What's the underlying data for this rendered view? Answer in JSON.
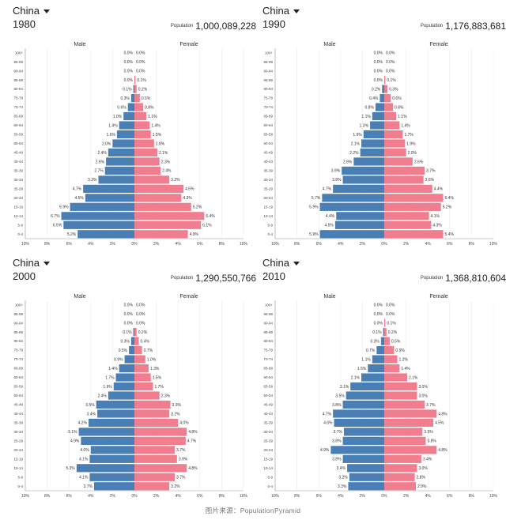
{
  "age_groups": [
    "0-4",
    "5-9",
    "10-14",
    "15-19",
    "20-24",
    "25-29",
    "30-34",
    "35-39",
    "40-44",
    "45-49",
    "50-54",
    "55-59",
    "60-64",
    "65-69",
    "70-74",
    "75-79",
    "80-84",
    "85-89",
    "90-94",
    "95-99",
    "100+"
  ],
  "x_ticks": [
    "10%",
    "8%",
    "6%",
    "4%",
    "2%",
    "0%",
    "2%",
    "4%",
    "6%",
    "8%",
    "10%"
  ],
  "colors": {
    "male": "#4a7fb5",
    "female": "#f07e8e"
  },
  "footer": "图片来源：PopulationPyramid",
  "chart_data": [
    {
      "type": "bar",
      "country": "China",
      "year": "1980",
      "population_label": "Population",
      "population": "1,000,089,228",
      "series_labels": {
        "male": "Male",
        "female": "Female"
      },
      "xlim": [
        -10,
        10
      ],
      "male": [
        5.2,
        6.5,
        6.7,
        5.9,
        4.5,
        4.7,
        3.3,
        2.7,
        2.6,
        2.4,
        2.0,
        1.6,
        1.4,
        1.0,
        0.6,
        0.3,
        0.1,
        0.0,
        0.0,
        0.0,
        0.0
      ],
      "female": [
        4.9,
        6.1,
        6.4,
        5.2,
        4.3,
        4.5,
        3.2,
        2.4,
        2.3,
        2.1,
        1.8,
        1.5,
        1.4,
        1.1,
        0.8,
        0.5,
        0.2,
        0.1,
        0.0,
        0.0,
        0.0
      ],
      "male_labels": [
        "5.2%",
        "6.5%",
        "6.7%",
        "5.9%",
        "4.5%",
        "4.7%",
        "3.3%",
        "2.7%",
        "2.6%",
        "2.4%",
        "2.0%",
        "1.6%",
        "1.4%",
        "1.0%",
        "0.6%",
        "0.3%",
        "0.1%",
        "0.0%",
        "0.0%",
        "0.0%",
        "0.0%"
      ],
      "female_labels": [
        "4.9%",
        "6.1%",
        "6.4%",
        "5.2%",
        "4.3%",
        "4.5%",
        "3.2%",
        "2.4%",
        "2.3%",
        "2.1%",
        "1.8%",
        "1.5%",
        "1.4%",
        "1.1%",
        "0.8%",
        "0.5%",
        "0.2%",
        "0.1%",
        "0.0%",
        "0.0%",
        "0.0%"
      ]
    },
    {
      "type": "bar",
      "country": "China",
      "year": "1990",
      "population_label": "Population",
      "population": "1,176,883,681",
      "series_labels": {
        "male": "Male",
        "female": "Female"
      },
      "xlim": [
        -10,
        10
      ],
      "male": [
        5.9,
        4.5,
        4.4,
        5.9,
        5.7,
        4.7,
        3.8,
        3.9,
        2.8,
        2.2,
        2.1,
        1.9,
        1.3,
        1.1,
        0.8,
        0.4,
        0.2,
        0.0,
        0.0,
        0.0,
        0.0
      ],
      "female": [
        5.4,
        4.3,
        4.1,
        5.2,
        5.4,
        4.4,
        3.6,
        3.7,
        2.6,
        2.0,
        1.9,
        1.7,
        1.4,
        1.1,
        0.8,
        0.6,
        0.3,
        0.1,
        0.0,
        0.0,
        0.0
      ],
      "male_labels": [
        "5.9%",
        "4.5%",
        "4.4%",
        "5.9%",
        "5.7%",
        "4.7%",
        "3.8%",
        "3.9%",
        "2.8%",
        "2.2%",
        "2.1%",
        "1.9%",
        "1.3%",
        "1.1%",
        "0.8%",
        "0.4%",
        "0.2%",
        "0.0%",
        "0.0%",
        "0.0%",
        "0.0%"
      ],
      "female_labels": [
        "5.4%",
        "4.3%",
        "4.1%",
        "5.2%",
        "5.4%",
        "4.4%",
        "3.6%",
        "3.7%",
        "2.6%",
        "2.0%",
        "1.9%",
        "1.7%",
        "1.4%",
        "1.1%",
        "0.8%",
        "0.6%",
        "0.3%",
        "0.1%",
        "0.0%",
        "0.0%",
        "0.0%"
      ]
    },
    {
      "type": "bar",
      "country": "China",
      "year": "2000",
      "population_label": "Population",
      "population": "1,290,550,766",
      "series_labels": {
        "male": "Male",
        "female": "Female"
      },
      "xlim": [
        -10,
        10
      ],
      "male": [
        3.7,
        4.1,
        5.3,
        4.1,
        4.0,
        4.9,
        5.1,
        4.2,
        3.4,
        3.5,
        2.4,
        1.9,
        1.7,
        1.4,
        0.9,
        0.5,
        0.3,
        0.1,
        0.0,
        0.0,
        0.0
      ],
      "female": [
        3.2,
        3.7,
        4.8,
        3.9,
        3.7,
        4.7,
        4.8,
        4.0,
        3.2,
        3.3,
        2.3,
        1.7,
        1.5,
        1.3,
        1.0,
        0.7,
        0.4,
        0.2,
        0.0,
        0.0,
        0.0
      ],
      "male_labels": [
        "3.7%",
        "4.1%",
        "5.3%",
        "4.1%",
        "4.0%",
        "4.9%",
        "5.1%",
        "4.2%",
        "3.4%",
        "3.5%",
        "2.4%",
        "1.9%",
        "1.7%",
        "1.4%",
        "0.9%",
        "0.5%",
        "0.3%",
        "0.1%",
        "0.0%",
        "0.0%",
        "0.0%"
      ],
      "female_labels": [
        "3.2%",
        "3.7%",
        "4.8%",
        "3.9%",
        "3.7%",
        "4.7%",
        "4.8%",
        "4.0%",
        "3.2%",
        "3.3%",
        "2.3%",
        "1.7%",
        "1.5%",
        "1.3%",
        "1.0%",
        "0.7%",
        "0.4%",
        "0.2%",
        "0.0%",
        "0.0%",
        "0.0%"
      ]
    },
    {
      "type": "bar",
      "country": "China",
      "year": "2010",
      "population_label": "Population",
      "population": "1,368,810,604",
      "series_labels": {
        "male": "Male",
        "female": "Female"
      },
      "xlim": [
        -10,
        10
      ],
      "male": [
        3.3,
        3.2,
        3.4,
        3.8,
        4.9,
        3.8,
        3.7,
        4.6,
        4.7,
        3.8,
        3.5,
        3.1,
        2.1,
        1.5,
        1.1,
        0.7,
        0.3,
        0.1,
        0.0,
        0.0,
        0.0
      ],
      "female": [
        2.9,
        2.8,
        3.0,
        3.4,
        4.8,
        3.8,
        3.5,
        4.5,
        4.8,
        3.7,
        3.0,
        3.0,
        2.1,
        1.4,
        1.2,
        0.9,
        0.5,
        0.2,
        0.1,
        0.0,
        0.0
      ],
      "male_labels": [
        "3.3%",
        "3.2%",
        "3.4%",
        "3.8%",
        "4.9%",
        "3.8%",
        "3.7%",
        "4.6%",
        "4.7%",
        "3.8%",
        "3.5%",
        "3.1%",
        "2.1%",
        "1.5%",
        "1.1%",
        "0.7%",
        "0.3%",
        "0.1%",
        "0.0%",
        "0.0%",
        "0.0%"
      ],
      "female_labels": [
        "2.9%",
        "2.8%",
        "3.0%",
        "3.4%",
        "4.8%",
        "3.8%",
        "3.5%",
        "4.5%",
        "4.8%",
        "3.7%",
        "3.0%",
        "3.0%",
        "2.1%",
        "1.4%",
        "1.2%",
        "0.9%",
        "0.5%",
        "0.2%",
        "0.1%",
        "0.0%",
        "0.0%"
      ]
    }
  ]
}
